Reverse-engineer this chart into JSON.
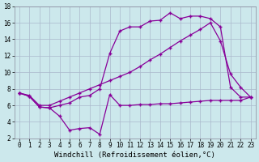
{
  "bg_color": "#cce8ec",
  "grid_color": "#aab8cc",
  "line_color": "#880099",
  "marker": "+",
  "xlabel": "Windchill (Refroidissement éolien,°C)",
  "xlabel_fontsize": 6.5,
  "tick_fontsize": 5.5,
  "xlim": [
    -0.5,
    23.5
  ],
  "ylim": [
    2,
    18
  ],
  "yticks": [
    2,
    4,
    6,
    8,
    10,
    12,
    14,
    16,
    18
  ],
  "xticks": [
    0,
    1,
    2,
    3,
    4,
    5,
    6,
    7,
    8,
    9,
    10,
    11,
    12,
    13,
    14,
    15,
    16,
    17,
    18,
    19,
    20,
    21,
    22,
    23
  ],
  "line_noisy_x": [
    0,
    1,
    2,
    3,
    4,
    5,
    6,
    7,
    8,
    9,
    10,
    11,
    12,
    13,
    14,
    15,
    16,
    17,
    18,
    19,
    20,
    21,
    22,
    23
  ],
  "line_noisy_y": [
    7.5,
    7.1,
    5.8,
    5.7,
    4.7,
    3.0,
    3.2,
    3.3,
    2.5,
    7.3,
    6.0,
    6.0,
    6.1,
    6.1,
    6.2,
    6.2,
    6.3,
    6.4,
    6.5,
    6.6,
    6.6,
    6.6,
    6.6,
    7.0
  ],
  "line_peak_x": [
    0,
    1,
    2,
    3,
    4,
    5,
    6,
    7,
    8,
    9,
    10,
    11,
    12,
    13,
    14,
    15,
    16,
    17,
    18,
    19,
    20,
    21,
    22,
    23
  ],
  "line_peak_y": [
    7.5,
    7.1,
    5.8,
    5.7,
    6.0,
    6.3,
    7.0,
    7.2,
    8.0,
    12.3,
    15.0,
    15.5,
    15.5,
    16.2,
    16.3,
    17.2,
    16.5,
    16.8,
    16.8,
    16.5,
    15.5,
    8.2,
    7.0,
    7.0
  ],
  "line_diag_x": [
    0,
    1,
    2,
    3,
    4,
    5,
    6,
    7,
    8,
    9,
    10,
    11,
    12,
    13,
    14,
    15,
    16,
    17,
    18,
    19,
    20,
    21,
    22,
    23
  ],
  "line_diag_y": [
    7.5,
    7.2,
    6.0,
    6.0,
    6.5,
    7.0,
    7.5,
    8.0,
    8.5,
    9.0,
    9.5,
    10.0,
    10.7,
    11.5,
    12.2,
    13.0,
    13.8,
    14.5,
    15.2,
    16.0,
    13.8,
    9.8,
    8.2,
    7.0
  ]
}
